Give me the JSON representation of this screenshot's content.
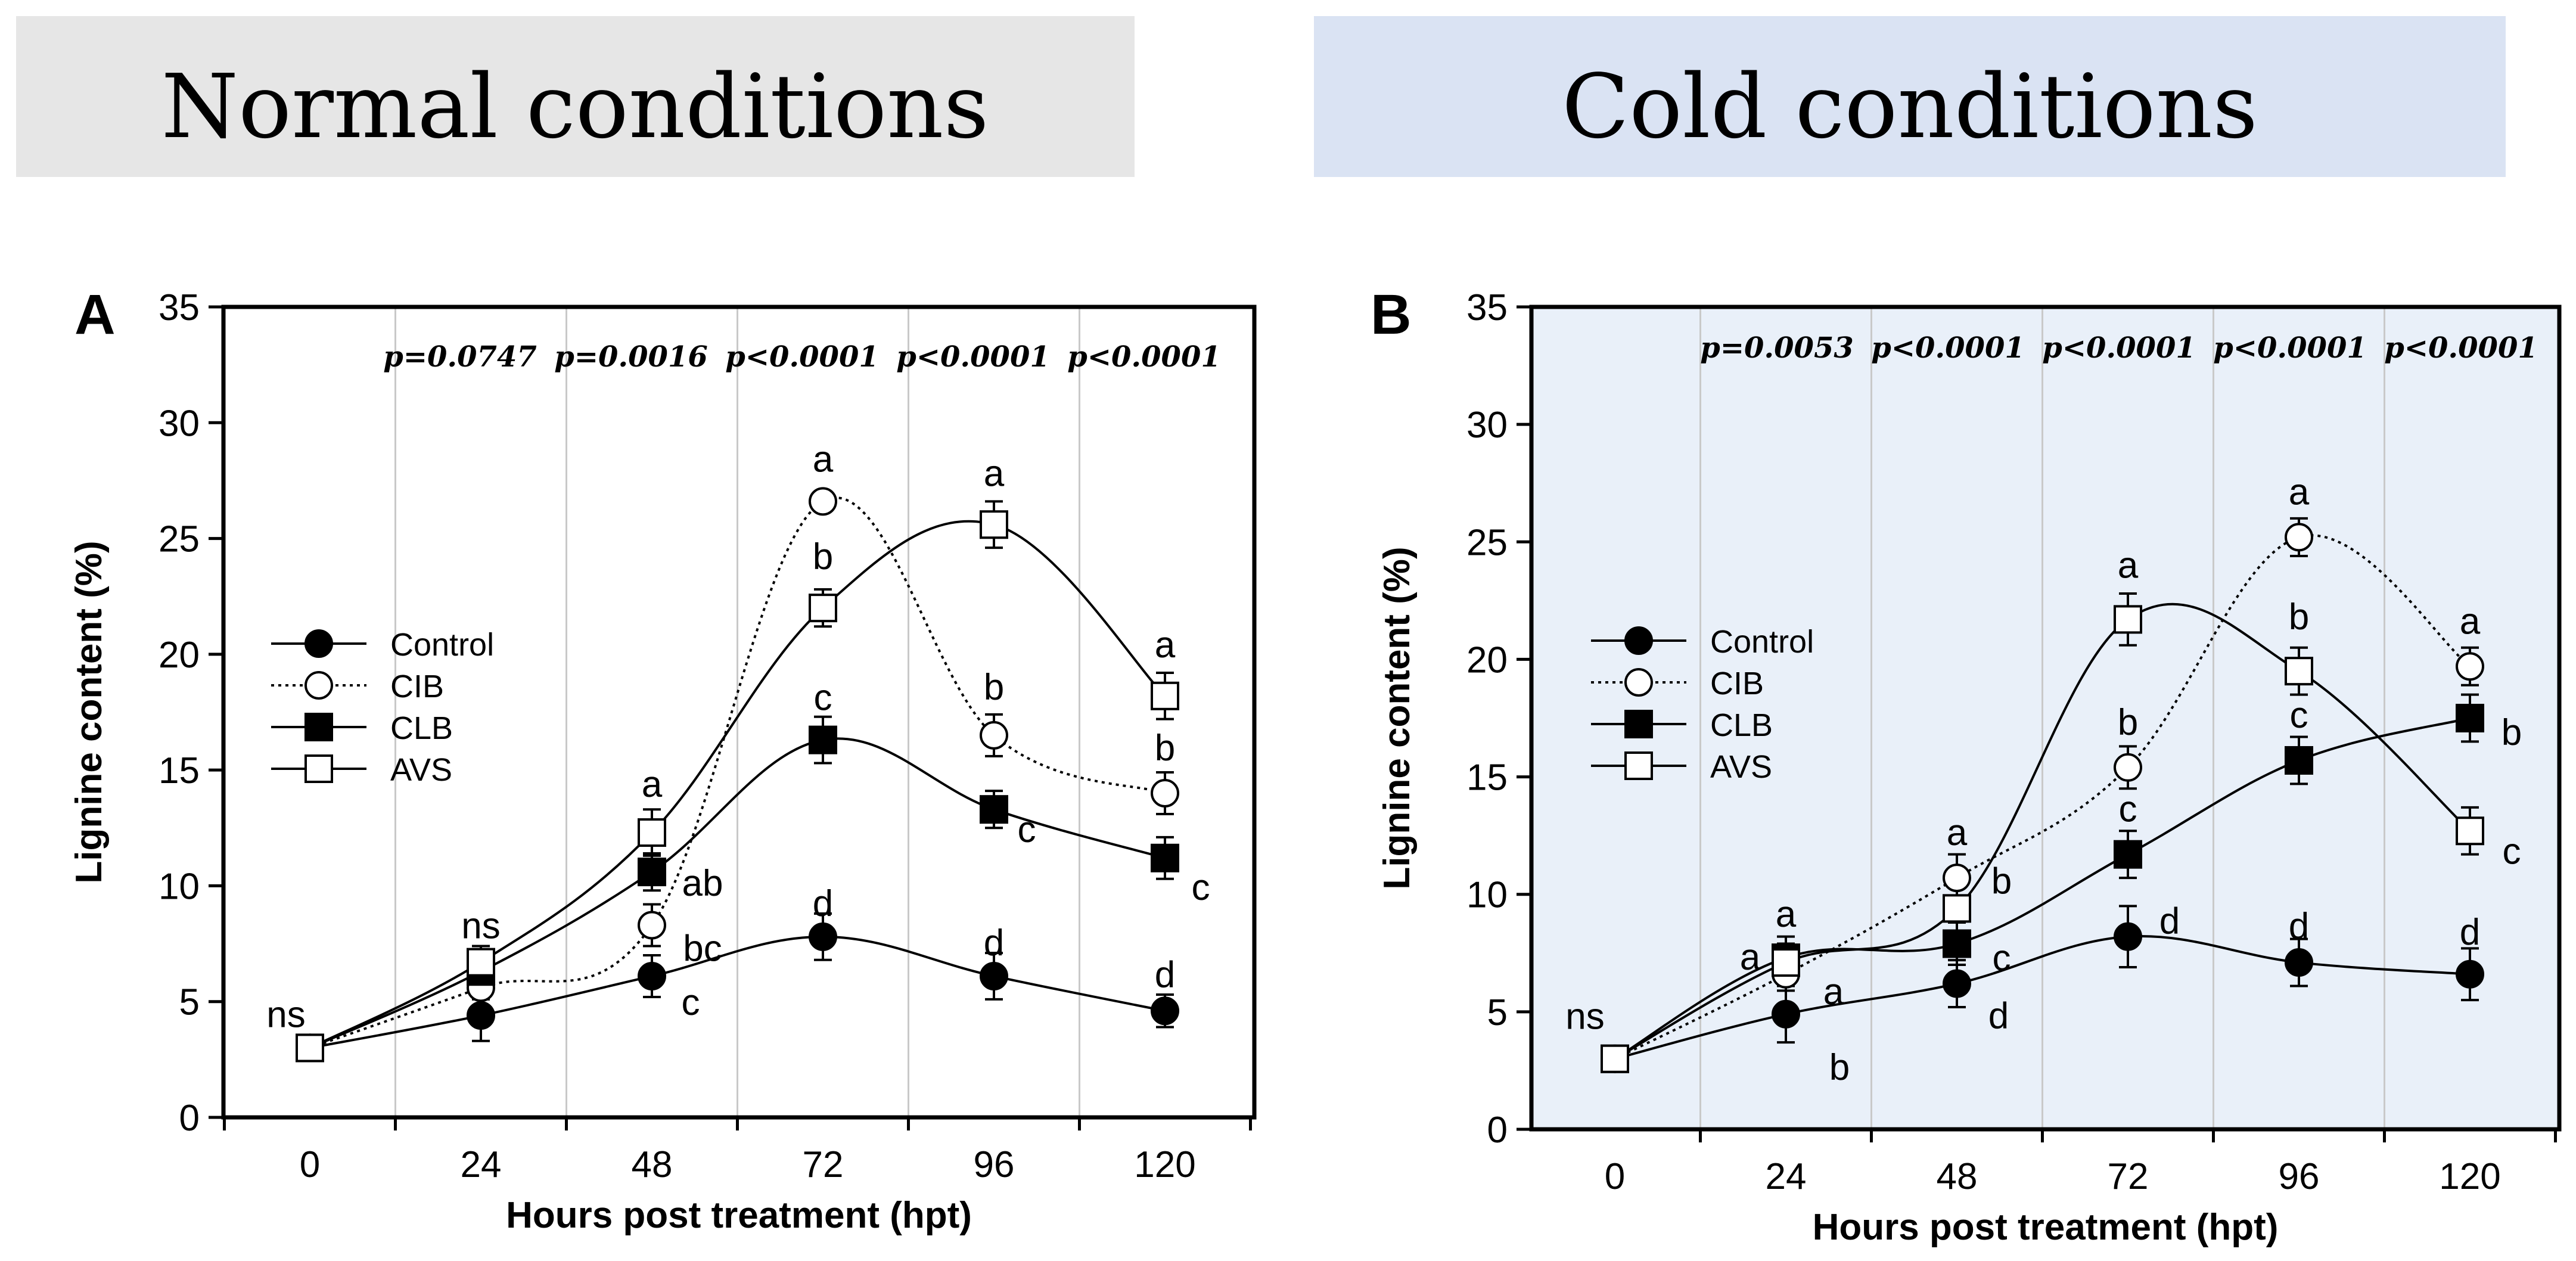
{
  "headers": {
    "normal": "Normal conditions",
    "cold": "Cold conditions"
  },
  "colors": {
    "normal_banner": "#e6e6e6",
    "cold_banner": "#dae3f3",
    "cold_plot_bg": "#e9f0f9",
    "ink": "#000000",
    "gridline": "#c9c9c9"
  },
  "chart_data": [
    {
      "panel": "A",
      "title": "Normal conditions",
      "type": "line",
      "x": [
        0,
        24,
        48,
        72,
        96,
        120
      ],
      "xticklabels": [
        "0",
        "24",
        "48",
        "72",
        "96",
        "120"
      ],
      "xlabel": "Hours post treatment (hpt)",
      "ylabel": "Lignine content (%)",
      "ylim": [
        0,
        35
      ],
      "yticks": [
        0,
        5,
        10,
        15,
        20,
        25,
        30,
        35
      ],
      "legend_position": "left-middle",
      "p_values": [
        "p=0.0747",
        "p=0.0016",
        "p<0.0001",
        "p<0.0001",
        "p<0.0001"
      ],
      "series": [
        {
          "name": "Control",
          "marker": "filled-circle",
          "line": "solid",
          "values": [
            3.0,
            4.4,
            6.1,
            7.8,
            6.1,
            4.6
          ],
          "errors": [
            0,
            1.1,
            0.9,
            1.0,
            1.0,
            0.7
          ],
          "letters": [
            "",
            "",
            "c",
            "d",
            "d",
            "d"
          ]
        },
        {
          "name": "CIB",
          "marker": "open-circle",
          "line": "dotted",
          "values": [
            3.0,
            5.6,
            8.3,
            26.6,
            16.5,
            14.0
          ],
          "errors": [
            0,
            0.5,
            0.9,
            0.3,
            0.9,
            0.9
          ],
          "letters": [
            "",
            "",
            "bc",
            "a",
            "b",
            "b"
          ]
        },
        {
          "name": "CLB",
          "marker": "filled-square",
          "line": "solid",
          "values": [
            3.0,
            6.3,
            10.6,
            16.3,
            13.3,
            11.2
          ],
          "errors": [
            0,
            0.5,
            0.8,
            1.0,
            0.8,
            0.9
          ],
          "letters": [
            "",
            "",
            "ab",
            "c",
            "c",
            "c"
          ]
        },
        {
          "name": "AVS",
          "marker": "open-square",
          "line": "solid",
          "values": [
            3.0,
            6.7,
            12.3,
            22.0,
            25.6,
            18.2
          ],
          "errors": [
            0,
            0.7,
            1.0,
            0.8,
            1.0,
            1.0
          ],
          "letters": [
            "ns",
            "ns",
            "a",
            "b",
            "a",
            "a"
          ]
        }
      ]
    },
    {
      "panel": "B",
      "title": "Cold conditions",
      "type": "line",
      "x": [
        0,
        24,
        48,
        72,
        96,
        120
      ],
      "xticklabels": [
        "0",
        "24",
        "48",
        "72",
        "96",
        "120"
      ],
      "xlabel": "Hours post treatment (hpt)",
      "ylabel": "Lignine content (%)",
      "ylim": [
        0,
        35
      ],
      "yticks": [
        0,
        5,
        10,
        15,
        20,
        25,
        30,
        35
      ],
      "legend_position": "left-middle",
      "p_values": [
        "p=0.0053",
        "p<0.0001",
        "p<0.0001",
        "p<0.0001",
        "p<0.0001"
      ],
      "series": [
        {
          "name": "Control",
          "marker": "filled-circle",
          "line": "solid",
          "values": [
            3.0,
            4.9,
            6.2,
            8.2,
            7.1,
            6.6
          ],
          "errors": [
            0,
            1.2,
            1.0,
            1.3,
            1.0,
            1.1
          ],
          "letters": [
            "",
            "b",
            "d",
            "d",
            "d",
            "d"
          ]
        },
        {
          "name": "CIB",
          "marker": "open-circle",
          "line": "dotted",
          "values": [
            3.0,
            6.6,
            10.7,
            15.4,
            25.2,
            19.7
          ],
          "errors": [
            0,
            0.7,
            1.0,
            0.9,
            0.8,
            0.8
          ],
          "letters": [
            "",
            "a",
            "a",
            "b",
            "a",
            "a"
          ]
        },
        {
          "name": "CLB",
          "marker": "filled-square",
          "line": "solid",
          "values": [
            3.0,
            7.3,
            7.9,
            11.7,
            15.7,
            17.5
          ],
          "errors": [
            0,
            0.9,
            0.9,
            1.0,
            1.0,
            1.0
          ],
          "letters": [
            "",
            "a",
            "c",
            "c",
            "c",
            "b"
          ]
        },
        {
          "name": "AVS",
          "marker": "open-square",
          "line": "solid",
          "values": [
            3.0,
            7.1,
            9.4,
            21.7,
            19.5,
            12.7
          ],
          "errors": [
            0,
            0.8,
            1.0,
            1.1,
            1.0,
            1.0
          ],
          "letters": [
            "ns",
            "a",
            "b",
            "a",
            "b",
            "c"
          ]
        }
      ]
    }
  ]
}
